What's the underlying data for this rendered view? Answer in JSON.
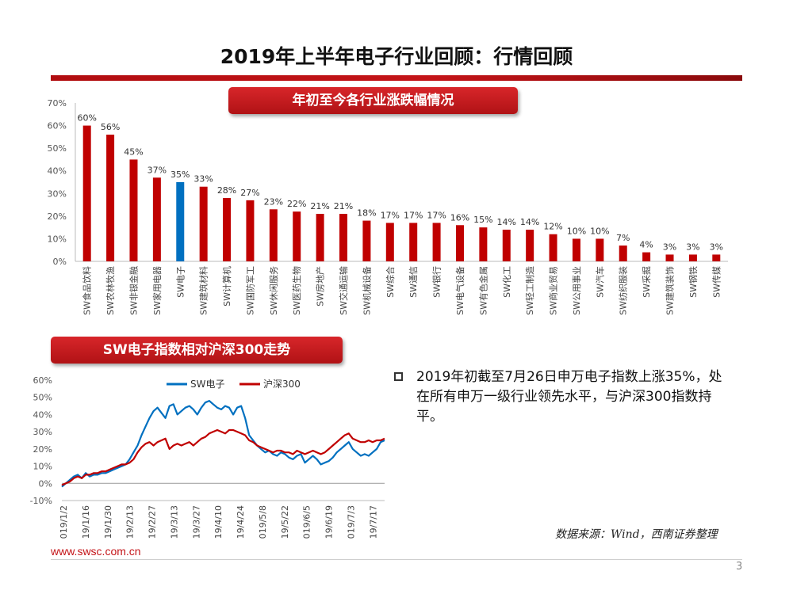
{
  "header": {
    "title": "2019年上半年电子行业回顾：行情回顾"
  },
  "sections": {
    "bar_title": "年初至今各行业涨跌幅情况",
    "line_title": "SW电子指数相对沪深300走势"
  },
  "colors": {
    "red": "#c00000",
    "blue": "#0070c0",
    "brand": "#c41418"
  },
  "chart_data": [
    {
      "type": "bar",
      "title": "年初至今各行业涨跌幅情况",
      "categories": [
        "SW食品饮料",
        "SW农林牧渔",
        "SW非银金融",
        "SW家用电器",
        "SW电子",
        "SW建筑材料",
        "SW计算机",
        "SW国防军工",
        "SW休闲服务",
        "SW医药生物",
        "SW房地产",
        "SW交通运输",
        "SW机械设备",
        "SW综合",
        "SW通信",
        "SW银行",
        "SW电气设备",
        "SW有色金属",
        "SW化工",
        "SW轻工制造",
        "SW商业贸易",
        "SW公用事业",
        "SW汽车",
        "SW纺织服装",
        "SW采掘",
        "SW建筑装饰",
        "SW钢铁",
        "SW传媒"
      ],
      "values": [
        60,
        56,
        45,
        37,
        35,
        33,
        28,
        27,
        23,
        22,
        21,
        21,
        18,
        17,
        17,
        17,
        16,
        15,
        14,
        14,
        12,
        10,
        10,
        7,
        4,
        3,
        3,
        3
      ],
      "value_labels": [
        "60%",
        "56%",
        "45%",
        "37%",
        "35%",
        "33%",
        "28%",
        "27%",
        "23%",
        "22%",
        "21%",
        "21%",
        "18%",
        "17%",
        "17%",
        "17%",
        "16%",
        "15%",
        "14%",
        "14%",
        "12%",
        "10%",
        "10%",
        "7%",
        "4%",
        "3%",
        "3%",
        "3%"
      ],
      "highlight_index": 4,
      "ylim": [
        0,
        70
      ],
      "yticks": [
        "0%",
        "10%",
        "20%",
        "30%",
        "40%",
        "50%",
        "60%",
        "70%"
      ]
    },
    {
      "type": "line",
      "title": "SW电子指数相对沪深300走势",
      "x_ticks": [
        "2019/1/2",
        "2019/1/16",
        "2019/1/30",
        "2019/2/13",
        "2019/2/27",
        "2019/3/13",
        "2019/3/27",
        "2019/4/10",
        "2019/4/24",
        "2019/5/8",
        "2019/5/22",
        "2019/6/5",
        "2019/6/19",
        "2019/7/3",
        "2019/7/17"
      ],
      "yticks": [
        "-10%",
        "0%",
        "10%",
        "20%",
        "30%",
        "40%",
        "50%",
        "60%"
      ],
      "ylim": [
        -10,
        60
      ],
      "legend": "top-center",
      "series": [
        {
          "name": "SW电子",
          "color": "#0070c0",
          "values": [
            -2,
            0,
            2,
            4,
            5,
            3,
            6,
            4,
            5,
            5,
            6,
            6,
            7,
            8,
            9,
            10,
            11,
            14,
            18,
            22,
            28,
            33,
            38,
            42,
            44,
            41,
            38,
            45,
            46,
            40,
            42,
            44,
            45,
            43,
            40,
            44,
            47,
            48,
            46,
            44,
            43,
            45,
            44,
            40,
            44,
            45,
            38,
            28,
            25,
            22,
            20,
            18,
            19,
            17,
            16,
            18,
            17,
            15,
            14,
            16,
            17,
            12,
            14,
            16,
            14,
            11,
            12,
            13,
            15,
            18,
            20,
            22,
            24,
            20,
            18,
            16,
            17,
            16,
            18,
            20,
            24,
            25
          ]
        },
        {
          "name": "沪深300",
          "color": "#c00000",
          "values": [
            -1,
            0,
            1,
            3,
            4,
            3,
            5,
            5,
            6,
            6,
            7,
            7,
            8,
            9,
            10,
            11,
            11,
            12,
            14,
            18,
            21,
            23,
            24,
            22,
            24,
            25,
            26,
            20,
            22,
            23,
            22,
            23,
            24,
            22,
            24,
            26,
            27,
            29,
            30,
            31,
            30,
            29,
            31,
            31,
            30,
            29,
            28,
            25,
            24,
            22,
            21,
            20,
            19,
            18,
            19,
            19,
            18,
            18,
            17,
            19,
            18,
            17,
            18,
            19,
            18,
            17,
            18,
            20,
            22,
            24,
            26,
            28,
            29,
            26,
            25,
            24,
            24,
            25,
            24,
            25,
            25,
            26
          ]
        }
      ]
    }
  ],
  "bullet": {
    "text": "2019年初截至7月26日申万电子指数上涨35%，处在所有申万一级行业领先水平，与沪深300指数持平。"
  },
  "source": "数据来源：Wind，西南证券整理",
  "footer": {
    "url": "www.swsc.com.cn",
    "page": "3"
  }
}
